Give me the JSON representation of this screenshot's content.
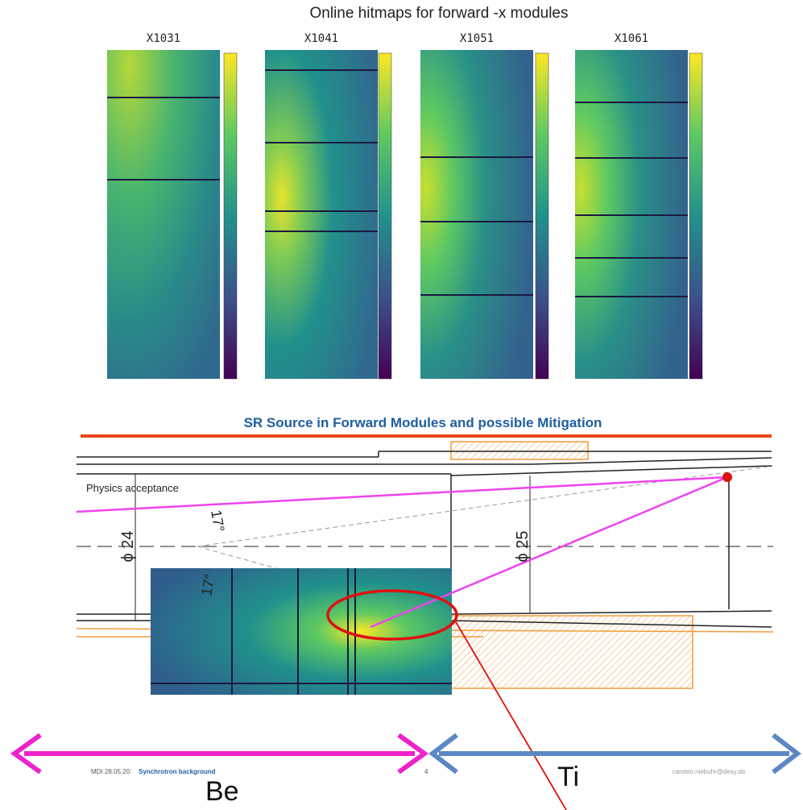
{
  "hitmaps": {
    "title": "Online hitmaps for forward -x modules",
    "panels": [
      {
        "label": "X1031"
      },
      {
        "label": "X1041"
      },
      {
        "label": "X1051"
      },
      {
        "label": "X1061"
      }
    ]
  },
  "slide": {
    "title": "SR Source in Forward Modules and possible Mitigation",
    "physics_acceptance": "Physics acceptance",
    "diameter_left": "ϕ 24",
    "diameter_right": "ϕ 25",
    "angle_top": "17°",
    "angle_bottom": "17°",
    "footer": {
      "date": "MDI 28.05.20:",
      "topic": "Synchrotron background",
      "page": "4",
      "email": "carsten.niebuhr@desy.de"
    }
  },
  "materials": {
    "left": "Be",
    "right": "Ti"
  }
}
